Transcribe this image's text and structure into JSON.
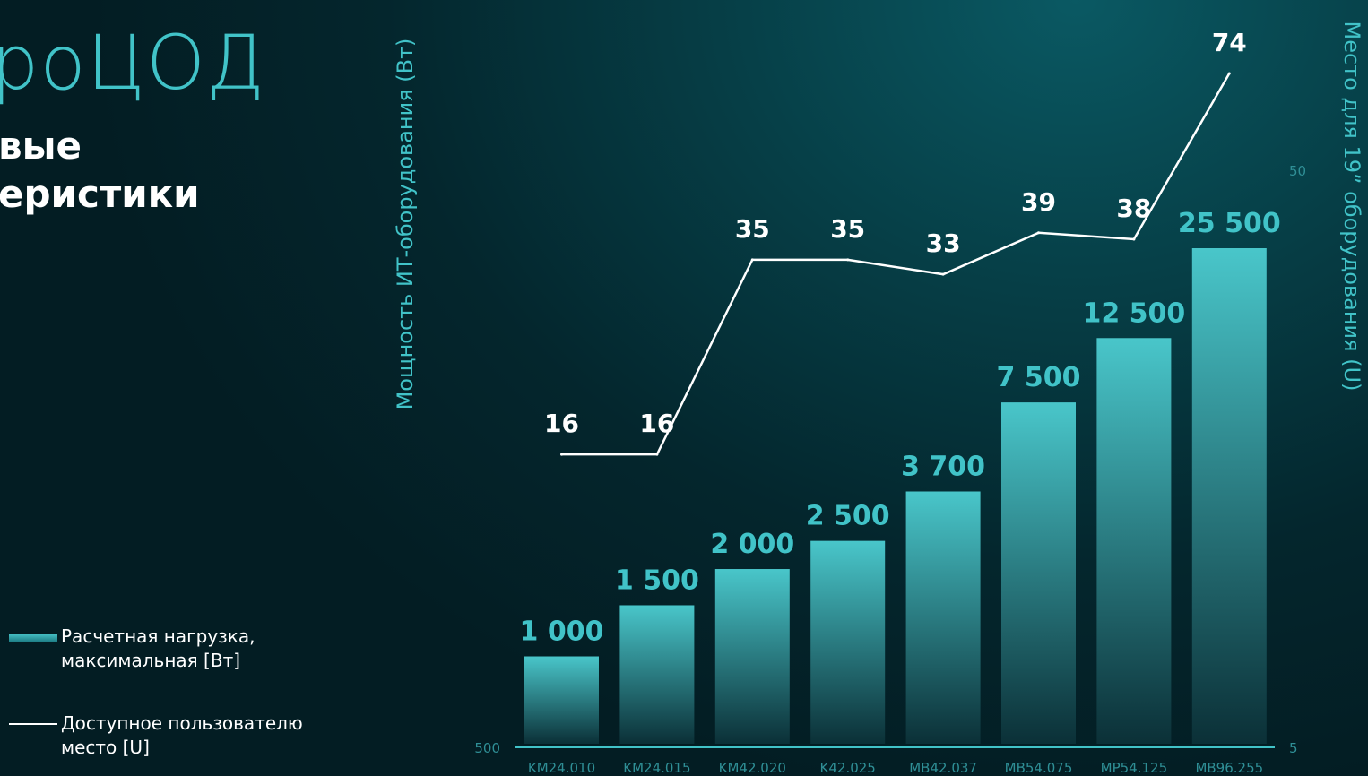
{
  "header": {
    "title": "роЦОД",
    "subtitle_line1": "вые",
    "subtitle_line2": "еристики"
  },
  "legend": {
    "bars_label_line1": "Расчетная нагрузка,",
    "bars_label_line2": "максимальная [Вт]",
    "line_label_line1": "Доступное пользователю",
    "line_label_line2": "место [U]"
  },
  "colors": {
    "accent": "#41c3c8",
    "bar_top": "#49c6ca",
    "line": "#ffffff",
    "background": "#04262d"
  },
  "chart_data": {
    "type": "bar",
    "categories": [
      "KM24.010",
      "KM24.015",
      "KM42.020",
      "K42.025",
      "MB42.037",
      "MB54.075",
      "MP54.125",
      "MB96.255"
    ],
    "series": [
      {
        "type": "bar",
        "axis": "left",
        "values": [
          1000,
          1500,
          2000,
          2500,
          3700,
          7500,
          12500,
          25500
        ],
        "value_labels": [
          "1 000",
          "1 500",
          "2 000",
          "2 500",
          "3 700",
          "7 500",
          "12 500",
          "25 500"
        ]
      },
      {
        "type": "line",
        "axis": "right",
        "values": [
          16,
          16,
          35,
          35,
          33,
          39,
          38,
          74
        ],
        "value_labels": [
          "16",
          "16",
          "35",
          "35",
          "33",
          "39",
          "38",
          "74"
        ]
      }
    ],
    "ylabel_left": "Мощность ИТ-оборудования (Вт)",
    "ylabel_right": "Место для 19” оборудования (U)",
    "y_left_ticks": [
      "500"
    ],
    "y_right_ticks": [
      "50",
      "5"
    ],
    "y_left_min": 500,
    "y_right_min": 5,
    "legend_position": "left"
  }
}
